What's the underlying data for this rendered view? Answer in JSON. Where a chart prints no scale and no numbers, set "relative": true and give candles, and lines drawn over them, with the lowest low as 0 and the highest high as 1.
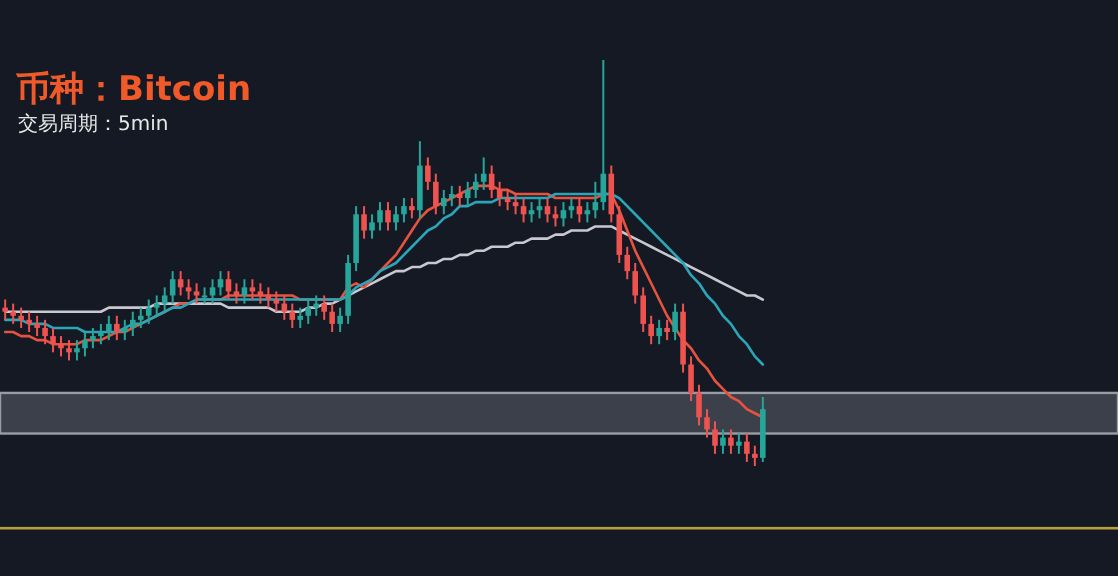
{
  "chart_data": {
    "type": "candlestick",
    "title": "币种：Bitcoin",
    "subtitle": "交易周期：5min",
    "relative": true,
    "categories": [
      null,
      null,
      null,
      null,
      null,
      null,
      null,
      null,
      null,
      null,
      null,
      null,
      null,
      null,
      null,
      null,
      null,
      null,
      null,
      null,
      null,
      null,
      null,
      null,
      null,
      null,
      null,
      null,
      null,
      null,
      null,
      null,
      null,
      null,
      null,
      null,
      null,
      null,
      null,
      null,
      null,
      null,
      null,
      null,
      null,
      null,
      null,
      null,
      null,
      null,
      null,
      null,
      null,
      null,
      null,
      null,
      null,
      null,
      null,
      null,
      null,
      null,
      null,
      null,
      null,
      null,
      null,
      null,
      null,
      null,
      null,
      null,
      null,
      null,
      null,
      null,
      null,
      null,
      null,
      null,
      null,
      null,
      null,
      null,
      null,
      null,
      null,
      null,
      null,
      null,
      null,
      null,
      null,
      null,
      null,
      null
    ],
    "ohlc": [
      [
        0.39,
        0.41,
        0.36,
        0.38
      ],
      [
        0.38,
        0.4,
        0.35,
        0.37
      ],
      [
        0.37,
        0.39,
        0.34,
        0.36
      ],
      [
        0.36,
        0.38,
        0.33,
        0.35
      ],
      [
        0.35,
        0.37,
        0.32,
        0.34
      ],
      [
        0.34,
        0.36,
        0.3,
        0.32
      ],
      [
        0.32,
        0.34,
        0.28,
        0.3
      ],
      [
        0.3,
        0.32,
        0.27,
        0.29
      ],
      [
        0.29,
        0.31,
        0.26,
        0.28
      ],
      [
        0.28,
        0.31,
        0.26,
        0.29
      ],
      [
        0.29,
        0.33,
        0.27,
        0.31
      ],
      [
        0.31,
        0.34,
        0.29,
        0.32
      ],
      [
        0.32,
        0.35,
        0.3,
        0.33
      ],
      [
        0.33,
        0.37,
        0.31,
        0.35
      ],
      [
        0.35,
        0.37,
        0.31,
        0.33
      ],
      [
        0.33,
        0.36,
        0.31,
        0.34
      ],
      [
        0.34,
        0.38,
        0.32,
        0.36
      ],
      [
        0.36,
        0.39,
        0.34,
        0.37
      ],
      [
        0.37,
        0.41,
        0.35,
        0.39
      ],
      [
        0.39,
        0.42,
        0.37,
        0.4
      ],
      [
        0.4,
        0.44,
        0.38,
        0.42
      ],
      [
        0.42,
        0.48,
        0.4,
        0.46
      ],
      [
        0.46,
        0.48,
        0.42,
        0.44
      ],
      [
        0.44,
        0.46,
        0.41,
        0.43
      ],
      [
        0.43,
        0.45,
        0.4,
        0.42
      ],
      [
        0.42,
        0.44,
        0.4,
        0.42
      ],
      [
        0.42,
        0.46,
        0.4,
        0.44
      ],
      [
        0.44,
        0.48,
        0.42,
        0.46
      ],
      [
        0.46,
        0.48,
        0.41,
        0.43
      ],
      [
        0.43,
        0.45,
        0.4,
        0.42
      ],
      [
        0.42,
        0.46,
        0.4,
        0.44
      ],
      [
        0.44,
        0.46,
        0.41,
        0.43
      ],
      [
        0.43,
        0.45,
        0.4,
        0.42
      ],
      [
        0.42,
        0.44,
        0.39,
        0.41
      ],
      [
        0.41,
        0.43,
        0.38,
        0.4
      ],
      [
        0.4,
        0.42,
        0.36,
        0.38
      ],
      [
        0.38,
        0.4,
        0.34,
        0.36
      ],
      [
        0.36,
        0.39,
        0.34,
        0.37
      ],
      [
        0.37,
        0.41,
        0.35,
        0.39
      ],
      [
        0.39,
        0.42,
        0.37,
        0.4
      ],
      [
        0.4,
        0.42,
        0.36,
        0.38
      ],
      [
        0.38,
        0.4,
        0.33,
        0.35
      ],
      [
        0.35,
        0.39,
        0.33,
        0.37
      ],
      [
        0.37,
        0.52,
        0.35,
        0.5
      ],
      [
        0.5,
        0.64,
        0.48,
        0.62
      ],
      [
        0.62,
        0.64,
        0.56,
        0.58
      ],
      [
        0.58,
        0.62,
        0.56,
        0.6
      ],
      [
        0.6,
        0.65,
        0.58,
        0.63
      ],
      [
        0.63,
        0.65,
        0.58,
        0.6
      ],
      [
        0.6,
        0.64,
        0.58,
        0.62
      ],
      [
        0.62,
        0.66,
        0.6,
        0.64
      ],
      [
        0.64,
        0.66,
        0.61,
        0.63
      ],
      [
        0.63,
        0.8,
        0.61,
        0.74
      ],
      [
        0.74,
        0.76,
        0.68,
        0.7
      ],
      [
        0.7,
        0.72,
        0.62,
        0.64
      ],
      [
        0.64,
        0.68,
        0.62,
        0.66
      ],
      [
        0.66,
        0.69,
        0.64,
        0.67
      ],
      [
        0.67,
        0.69,
        0.64,
        0.66
      ],
      [
        0.66,
        0.7,
        0.64,
        0.68
      ],
      [
        0.68,
        0.72,
        0.66,
        0.7
      ],
      [
        0.7,
        0.76,
        0.68,
        0.72
      ],
      [
        0.72,
        0.74,
        0.66,
        0.68
      ],
      [
        0.68,
        0.7,
        0.64,
        0.66
      ],
      [
        0.66,
        0.68,
        0.63,
        0.65
      ],
      [
        0.65,
        0.67,
        0.62,
        0.64
      ],
      [
        0.64,
        0.66,
        0.6,
        0.62
      ],
      [
        0.62,
        0.65,
        0.6,
        0.63
      ],
      [
        0.63,
        0.66,
        0.61,
        0.64
      ],
      [
        0.64,
        0.66,
        0.6,
        0.62
      ],
      [
        0.62,
        0.64,
        0.59,
        0.61
      ],
      [
        0.61,
        0.65,
        0.59,
        0.63
      ],
      [
        0.63,
        0.66,
        0.61,
        0.64
      ],
      [
        0.64,
        0.66,
        0.6,
        0.62
      ],
      [
        0.62,
        0.65,
        0.6,
        0.63
      ],
      [
        0.63,
        0.7,
        0.61,
        0.65
      ],
      [
        0.65,
        1.0,
        0.63,
        0.72
      ],
      [
        0.72,
        0.74,
        0.6,
        0.62
      ],
      [
        0.62,
        0.64,
        0.5,
        0.52
      ],
      [
        0.52,
        0.54,
        0.46,
        0.48
      ],
      [
        0.48,
        0.5,
        0.4,
        0.42
      ],
      [
        0.42,
        0.44,
        0.33,
        0.35
      ],
      [
        0.35,
        0.37,
        0.3,
        0.32
      ],
      [
        0.32,
        0.36,
        0.3,
        0.34
      ],
      [
        0.34,
        0.36,
        0.31,
        0.33
      ],
      [
        0.33,
        0.4,
        0.31,
        0.38
      ],
      [
        0.38,
        0.4,
        0.23,
        0.25
      ],
      [
        0.25,
        0.27,
        0.16,
        0.18
      ],
      [
        0.18,
        0.2,
        0.1,
        0.12
      ],
      [
        0.12,
        0.14,
        0.07,
        0.09
      ],
      [
        0.09,
        0.11,
        0.03,
        0.05
      ],
      [
        0.05,
        0.09,
        0.03,
        0.07
      ],
      [
        0.07,
        0.09,
        0.03,
        0.05
      ],
      [
        0.05,
        0.08,
        0.03,
        0.06
      ],
      [
        0.06,
        0.08,
        0.01,
        0.03
      ],
      [
        0.03,
        0.05,
        0,
        0.02
      ],
      [
        0.02,
        0.17,
        0.01,
        0.14
      ]
    ],
    "series": [
      {
        "type": "line",
        "color": "#c8c8d0",
        "values": [
          0.38,
          0.38,
          0.38,
          0.38,
          0.38,
          0.38,
          0.38,
          0.38,
          0.38,
          0.38,
          0.38,
          0.38,
          0.38,
          0.39,
          0.39,
          0.39,
          0.39,
          0.39,
          0.39,
          0.4,
          0.4,
          0.4,
          0.4,
          0.4,
          0.4,
          0.4,
          0.4,
          0.4,
          0.39,
          0.39,
          0.39,
          0.39,
          0.39,
          0.39,
          0.38,
          0.38,
          0.38,
          0.38,
          0.39,
          0.39,
          0.4,
          0.4,
          0.41,
          0.42,
          0.43,
          0.44,
          0.45,
          0.46,
          0.47,
          0.48,
          0.48,
          0.49,
          0.49,
          0.5,
          0.5,
          0.51,
          0.51,
          0.52,
          0.52,
          0.53,
          0.53,
          0.54,
          0.54,
          0.54,
          0.55,
          0.55,
          0.56,
          0.56,
          0.56,
          0.57,
          0.57,
          0.58,
          0.58,
          0.58,
          0.59,
          0.59,
          0.59,
          0.58,
          0.57,
          0.56,
          0.55,
          0.54,
          0.53,
          0.52,
          0.51,
          0.5,
          0.49,
          0.48,
          0.47,
          0.46,
          0.45,
          0.44,
          0.43,
          0.42,
          0.42,
          0.41
        ]
      },
      {
        "type": "line",
        "color": "#e8533f",
        "values": [
          0.33,
          0.33,
          0.32,
          0.32,
          0.31,
          0.31,
          0.3,
          0.3,
          0.3,
          0.3,
          0.31,
          0.31,
          0.31,
          0.32,
          0.33,
          0.33,
          0.34,
          0.35,
          0.36,
          0.37,
          0.38,
          0.39,
          0.4,
          0.4,
          0.41,
          0.41,
          0.41,
          0.41,
          0.42,
          0.42,
          0.42,
          0.42,
          0.42,
          0.42,
          0.42,
          0.42,
          0.42,
          0.41,
          0.41,
          0.41,
          0.41,
          0.41,
          0.41,
          0.44,
          0.45,
          0.44,
          0.46,
          0.48,
          0.5,
          0.52,
          0.55,
          0.58,
          0.61,
          0.63,
          0.64,
          0.65,
          0.66,
          0.67,
          0.68,
          0.69,
          0.69,
          0.69,
          0.68,
          0.68,
          0.67,
          0.67,
          0.67,
          0.67,
          0.67,
          0.66,
          0.66,
          0.66,
          0.66,
          0.66,
          0.66,
          0.67,
          0.67,
          0.63,
          0.58,
          0.53,
          0.49,
          0.45,
          0.41,
          0.37,
          0.34,
          0.31,
          0.29,
          0.26,
          0.24,
          0.21,
          0.19,
          0.17,
          0.16,
          0.14,
          0.13,
          0.12
        ]
      },
      {
        "type": "line",
        "color": "#2aa6b8",
        "values": [
          0.36,
          0.36,
          0.36,
          0.35,
          0.35,
          0.35,
          0.34,
          0.34,
          0.34,
          0.34,
          0.33,
          0.33,
          0.33,
          0.33,
          0.33,
          0.34,
          0.35,
          0.35,
          0.36,
          0.37,
          0.38,
          0.39,
          0.39,
          0.4,
          0.41,
          0.41,
          0.41,
          0.41,
          0.41,
          0.41,
          0.41,
          0.41,
          0.41,
          0.41,
          0.41,
          0.41,
          0.41,
          0.41,
          0.41,
          0.41,
          0.41,
          0.41,
          0.41,
          0.42,
          0.44,
          0.45,
          0.46,
          0.48,
          0.49,
          0.5,
          0.52,
          0.54,
          0.56,
          0.58,
          0.59,
          0.61,
          0.62,
          0.64,
          0.64,
          0.65,
          0.65,
          0.65,
          0.66,
          0.66,
          0.66,
          0.66,
          0.66,
          0.66,
          0.66,
          0.67,
          0.67,
          0.67,
          0.67,
          0.67,
          0.67,
          0.67,
          0.67,
          0.66,
          0.64,
          0.62,
          0.6,
          0.58,
          0.56,
          0.54,
          0.52,
          0.5,
          0.47,
          0.45,
          0.42,
          0.4,
          0.37,
          0.35,
          0.32,
          0.3,
          0.27,
          0.25
        ]
      }
    ],
    "bands": [
      {
        "axis": "y",
        "from": 0.08,
        "to": 0.18,
        "color": "#4a4d57"
      }
    ],
    "ref_lines": [
      {
        "axis": "y",
        "value": -0.15,
        "color": "#b8a040"
      }
    ]
  }
}
